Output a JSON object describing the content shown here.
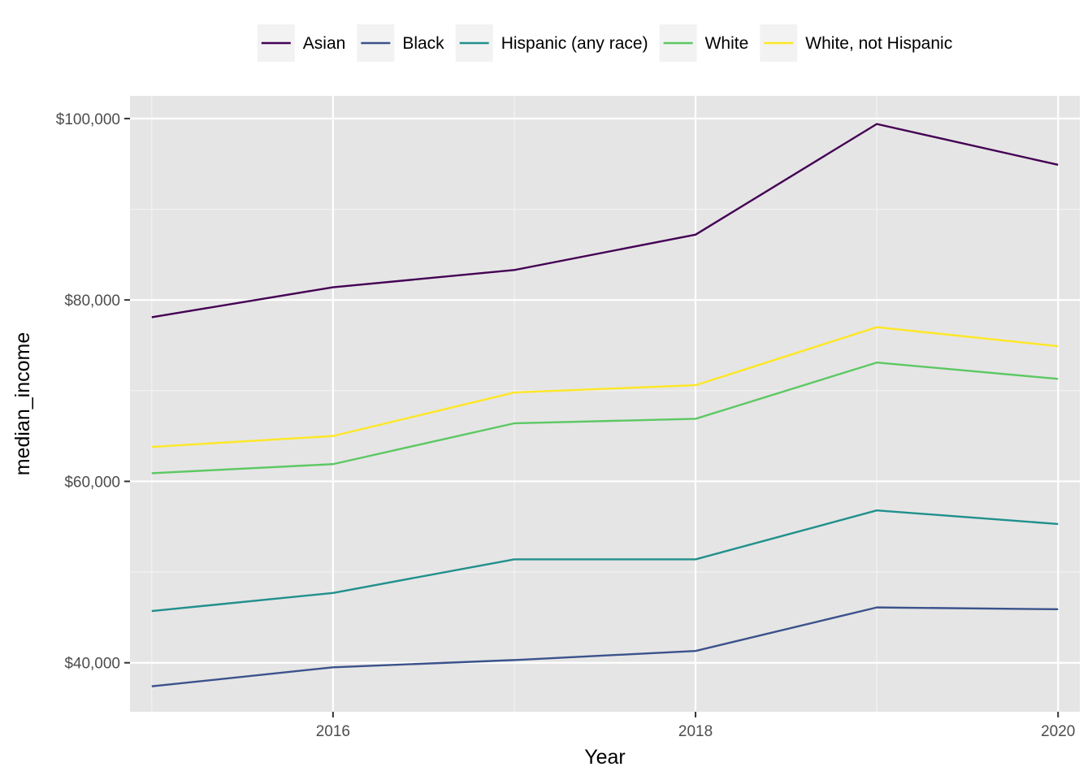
{
  "chart_data": {
    "type": "line",
    "title": "",
    "xlabel": "Year",
    "ylabel": "median_income",
    "x": [
      2015,
      2016,
      2017,
      2018,
      2019,
      2020
    ],
    "xlim": [
      2014.88,
      2020.12
    ],
    "ylim": [
      34600,
      102500
    ],
    "x_ticks": [
      2016,
      2018,
      2020
    ],
    "x_tick_labels": [
      "2016",
      "2018",
      "2020"
    ],
    "y_ticks": [
      40000,
      60000,
      80000,
      100000
    ],
    "y_tick_labels": [
      "$40,000",
      "$60,000",
      "$80,000",
      "$100,000"
    ],
    "x_minor_ticks": [
      2015,
      2017,
      2019
    ],
    "y_minor_ticks": [
      50000,
      70000,
      90000
    ],
    "grid": true,
    "legend_position": "top",
    "series": [
      {
        "name": "Asian",
        "color": "#440154",
        "values": [
          78100,
          81400,
          83300,
          87200,
          99400,
          94900
        ]
      },
      {
        "name": "Black",
        "color": "#3b528b",
        "values": [
          37400,
          39500,
          40300,
          41300,
          46100,
          45900
        ]
      },
      {
        "name": "Hispanic (any race)",
        "color": "#21908c",
        "values": [
          45700,
          47700,
          51400,
          51400,
          56800,
          55300
        ]
      },
      {
        "name": "White",
        "color": "#5dc863",
        "values": [
          60900,
          61900,
          66400,
          66900,
          73100,
          71300
        ]
      },
      {
        "name": "White, not Hispanic",
        "color": "#fde725",
        "values": [
          63800,
          65000,
          69800,
          70600,
          77000,
          74900
        ]
      }
    ]
  }
}
